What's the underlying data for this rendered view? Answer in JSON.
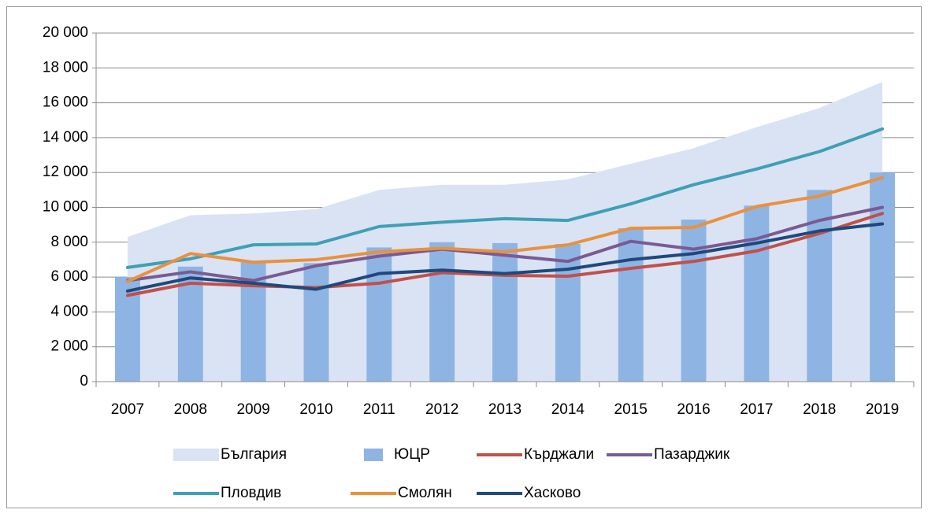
{
  "chart_data": {
    "type": "combo",
    "categories": [
      "2007",
      "2008",
      "2009",
      "2010",
      "2011",
      "2012",
      "2013",
      "2014",
      "2015",
      "2016",
      "2017",
      "2018",
      "2019"
    ],
    "ylim": [
      0,
      20000
    ],
    "yticks": [
      0,
      {
        "value": 2000,
        "label": "2 000"
      },
      {
        "value": 4000,
        "label": "4 000"
      },
      {
        "value": 6000,
        "label": "6 000"
      },
      {
        "value": 8000,
        "label": "8 000"
      },
      {
        "value": 10000,
        "label": "10 000"
      },
      {
        "value": 12000,
        "label": "12 000"
      },
      {
        "value": 14000,
        "label": "14 000"
      },
      {
        "value": 16000,
        "label": "16 000"
      },
      {
        "value": 18000,
        "label": "18 000"
      },
      {
        "value": 20000,
        "label": "20 000"
      }
    ],
    "grid": true,
    "legend": "bottom",
    "series": [
      {
        "name": "България",
        "type": "area",
        "color": "#dae3f3",
        "values": [
          8300,
          9550,
          9650,
          9900,
          11000,
          11300,
          11300,
          11600,
          12500,
          13400,
          14600,
          15700,
          17200
        ]
      },
      {
        "name": "ЮЦР",
        "type": "bar",
        "color": "#8eb4e3",
        "values": [
          6000,
          6600,
          6900,
          6800,
          7700,
          8000,
          7950,
          7900,
          8800,
          9300,
          10100,
          11000,
          12000
        ]
      },
      {
        "name": "Кърджали",
        "type": "line",
        "color": "#c0504d",
        "values": [
          4950,
          5650,
          5500,
          5400,
          5650,
          6250,
          6100,
          6050,
          6500,
          6900,
          7500,
          8500,
          9650
        ]
      },
      {
        "name": "Пазарджик",
        "type": "line",
        "color": "#7b5a93",
        "values": [
          5800,
          6300,
          5800,
          6650,
          7200,
          7600,
          7250,
          6900,
          8050,
          7600,
          8200,
          9250,
          10000
        ]
      },
      {
        "name": "Пловдив",
        "type": "line",
        "color": "#3fa0b5",
        "values": [
          6550,
          7050,
          7850,
          7900,
          8900,
          9150,
          9350,
          9250,
          10200,
          11300,
          12200,
          13200,
          14500
        ]
      },
      {
        "name": "Смолян",
        "type": "line",
        "color": "#e8913f",
        "values": [
          5750,
          7350,
          6850,
          7000,
          7450,
          7650,
          7450,
          7850,
          8800,
          8850,
          10050,
          10650,
          11700
        ]
      },
      {
        "name": "Хасково",
        "type": "line",
        "color": "#1f497d",
        "values": [
          5200,
          5950,
          5650,
          5300,
          6200,
          6400,
          6200,
          6450,
          7000,
          7350,
          7950,
          8650,
          9050
        ]
      }
    ]
  }
}
